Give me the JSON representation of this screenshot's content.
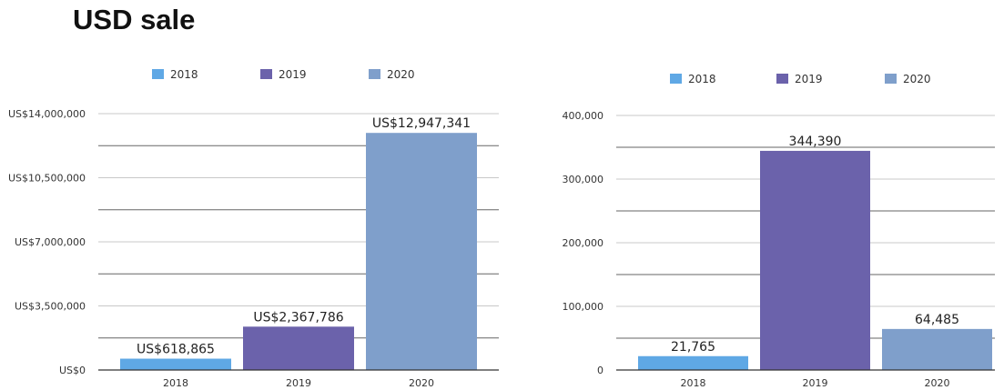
{
  "page": {
    "title": "USD sale"
  },
  "colors": {
    "2018": "#5fa8e5",
    "2019": "#6b62ab",
    "2020": "#7f9fcb",
    "axis": "#333333",
    "grid": "#c8c8c8",
    "grid_major": "#666666"
  },
  "chart_data": [
    {
      "type": "bar",
      "title": "",
      "xlabel": "",
      "ylabel": "",
      "categories": [
        "2018",
        "2019",
        "2020"
      ],
      "values": [
        618865,
        2367786,
        12947341
      ],
      "data_labels": [
        "US$618,865",
        "US$2,367,786",
        "US$12,947,341"
      ],
      "ylim": [
        0,
        14000000
      ],
      "yticks": [
        0,
        3500000,
        7000000,
        10500000,
        14000000
      ],
      "ytick_labels": [
        "US$0",
        "US$3,500,000",
        "US$7,000,000",
        "US$10,500,000",
        "US$14,000,000"
      ],
      "legend": [
        "2018",
        "2019",
        "2020"
      ],
      "legend_position": "top",
      "grid": true
    },
    {
      "type": "bar",
      "title": "",
      "xlabel": "",
      "ylabel": "",
      "categories": [
        "2018",
        "2019",
        "2020"
      ],
      "values": [
        21765,
        344390,
        64485
      ],
      "data_labels": [
        "21,765",
        "344,390",
        "64,485"
      ],
      "ylim": [
        0,
        400000
      ],
      "yticks": [
        0,
        100000,
        200000,
        300000,
        400000
      ],
      "ytick_labels": [
        "0",
        "100,000",
        "200,000",
        "300,000",
        "400,000"
      ],
      "legend": [
        "2018",
        "2019",
        "2020"
      ],
      "legend_position": "top",
      "grid": true
    }
  ]
}
